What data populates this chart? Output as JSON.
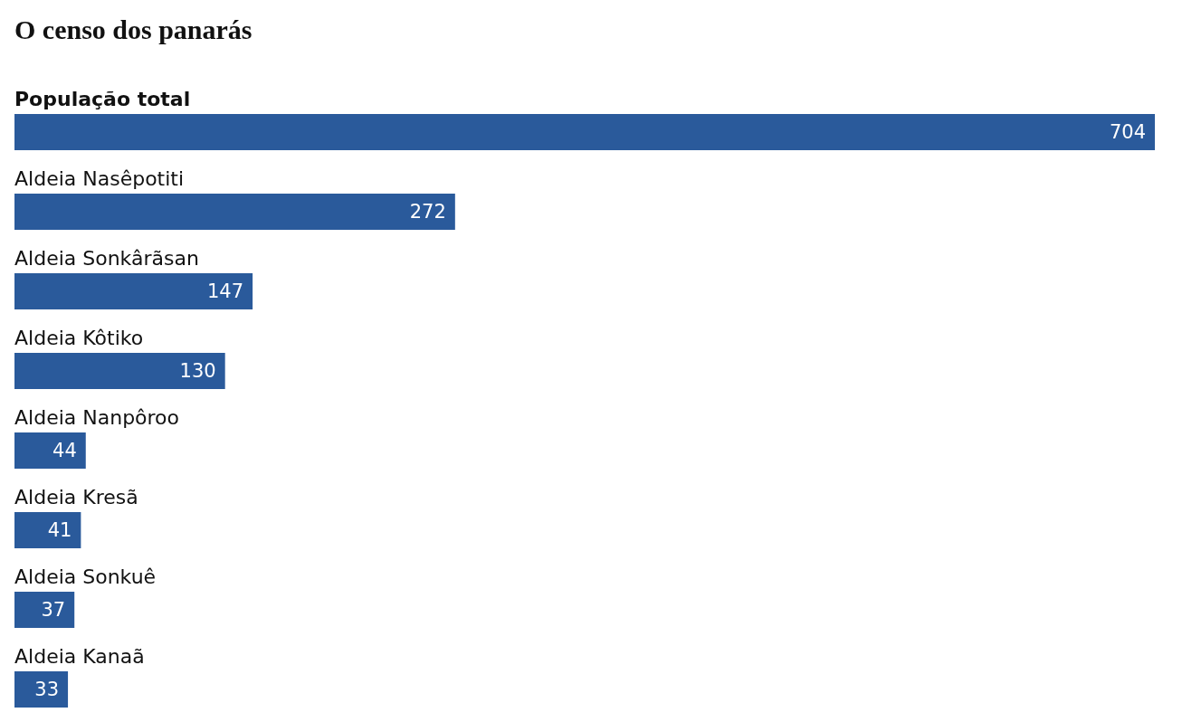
{
  "chart_data": {
    "type": "bar",
    "orientation": "horizontal",
    "title": "O censo dos panarás",
    "categories": [
      "População total",
      "Aldeia Nasêpotiti",
      "Aldeia Sonkârãsan",
      "Aldeia Kôtiko",
      "Aldeia Nanpôroo",
      "Aldeia Kresã",
      "Aldeia Sonkuê",
      "Aldeia Kanaã"
    ],
    "values": [
      704,
      272,
      147,
      130,
      44,
      41,
      37,
      33
    ],
    "color": "#2a5a9b",
    "data_labels": true
  }
}
